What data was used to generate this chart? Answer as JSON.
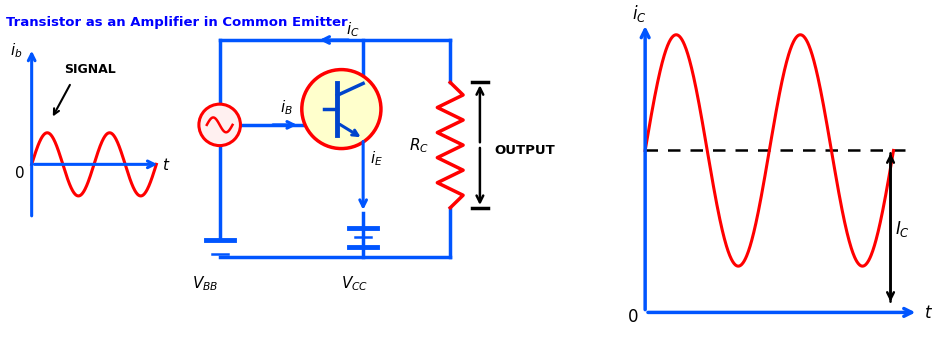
{
  "title": "Transistor as an Amplifier in Common Emitter",
  "title_color": "#0000FF",
  "circuit_color": "#0055FF",
  "signal_color": "#FF0000",
  "arrow_color": "#000000",
  "bg_color": "#FFFFFF",
  "transistor_fill": "#FFFFCC",
  "transistor_circle_color": "#FF0000"
}
